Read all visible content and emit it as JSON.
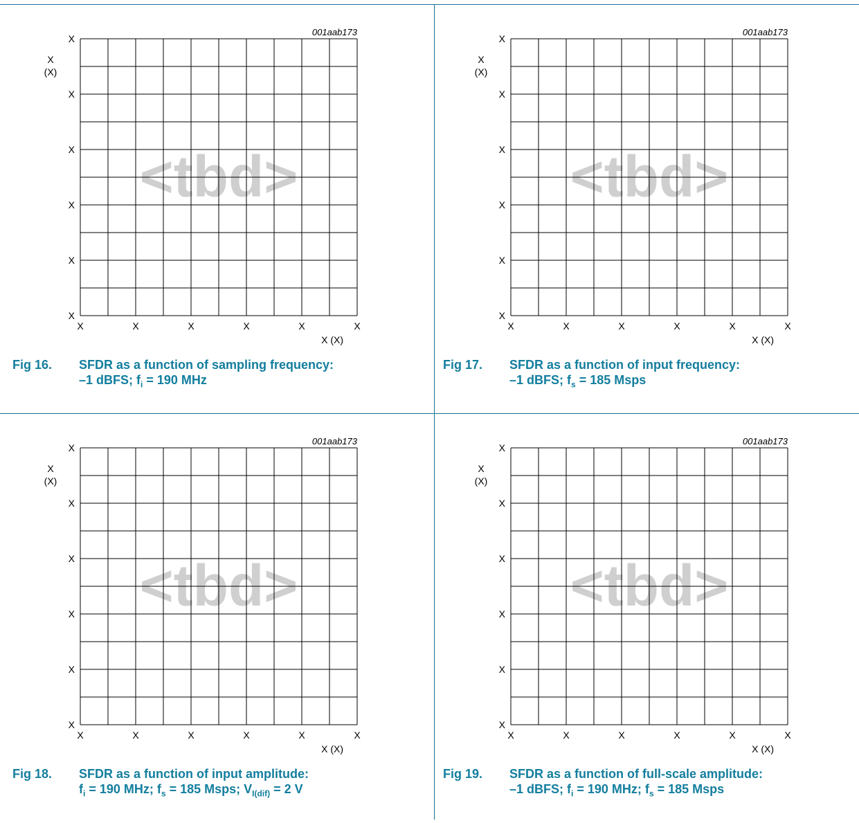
{
  "chart_data": [
    {
      "type": "line",
      "code": "001aab173",
      "watermark": "<tbd>",
      "y_ticks": [
        "X",
        "X",
        "X",
        "X",
        "X",
        "X"
      ],
      "y_label_top": "X",
      "y_label_unit": "(X)",
      "x_ticks": [
        "X",
        "X",
        "X",
        "X",
        "X",
        "X"
      ],
      "x_label": "X (X)",
      "caption": {
        "fig": "Fig 16.",
        "line1": "SFDR as a function of sampling frequency:",
        "line2": [
          {
            "t": "–1 dBFS; f"
          },
          {
            "t": "i",
            "sub": true
          },
          {
            "t": " = 190 MHz"
          }
        ]
      }
    },
    {
      "type": "line",
      "code": "001aab173",
      "watermark": "<tbd>",
      "y_ticks": [
        "X",
        "X",
        "X",
        "X",
        "X",
        "X"
      ],
      "y_label_top": "X",
      "y_label_unit": "(X)",
      "x_ticks": [
        "X",
        "X",
        "X",
        "X",
        "X",
        "X"
      ],
      "x_label": "X (X)",
      "caption": {
        "fig": "Fig 17.",
        "line1": "SFDR as a function of input frequency:",
        "line2": [
          {
            "t": "–1 dBFS; f"
          },
          {
            "t": "s",
            "sub": true
          },
          {
            "t": " = 185 Msps"
          }
        ]
      }
    },
    {
      "type": "line",
      "code": "001aab173",
      "watermark": "<tbd>",
      "y_ticks": [
        "X",
        "X",
        "X",
        "X",
        "X",
        "X"
      ],
      "y_label_top": "X",
      "y_label_unit": "(X)",
      "x_ticks": [
        "X",
        "X",
        "X",
        "X",
        "X",
        "X"
      ],
      "x_label": "X (X)",
      "caption": {
        "fig": "Fig 18.",
        "line1": "SFDR as a function of input amplitude:",
        "line2": [
          {
            "t": "f"
          },
          {
            "t": "i",
            "sub": true
          },
          {
            "t": " = 190 MHz; f"
          },
          {
            "t": "s",
            "sub": true
          },
          {
            "t": " = 185 Msps; V"
          },
          {
            "t": "I(dif)",
            "sub": true
          },
          {
            "t": " = 2 V"
          }
        ]
      }
    },
    {
      "type": "line",
      "code": "001aab173",
      "watermark": "<tbd>",
      "y_ticks": [
        "X",
        "X",
        "X",
        "X",
        "X",
        "X"
      ],
      "y_label_top": "X",
      "y_label_unit": "(X)",
      "x_ticks": [
        "X",
        "X",
        "X",
        "X",
        "X",
        "X"
      ],
      "x_label": "X (X)",
      "caption": {
        "fig": "Fig 19.",
        "line1": "SFDR as a function of full-scale amplitude:",
        "line2": [
          {
            "t": "–1 dBFS; f"
          },
          {
            "t": "i",
            "sub": true
          },
          {
            "t": " = 190 MHz; f"
          },
          {
            "t": "s",
            "sub": true
          },
          {
            "t": " = 185 Msps"
          }
        ]
      }
    }
  ]
}
